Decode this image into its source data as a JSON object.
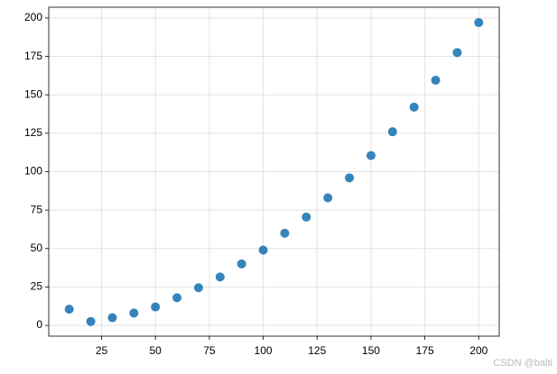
{
  "chart_data": {
    "type": "scatter",
    "x": [
      10,
      20,
      30,
      40,
      50,
      60,
      70,
      80,
      90,
      100,
      110,
      120,
      130,
      140,
      150,
      160,
      170,
      180,
      190,
      200
    ],
    "values": [
      10.5,
      2.5,
      5,
      8,
      12,
      18,
      24.5,
      31.5,
      40,
      49,
      60,
      70.5,
      83,
      96,
      110.5,
      126,
      142,
      159.5,
      177.5,
      197
    ],
    "color": "#1f77b4",
    "xlim": [
      0.5,
      209.5
    ],
    "ylim": [
      -7,
      207
    ],
    "xticks": [
      25,
      50,
      75,
      100,
      125,
      150,
      175,
      200
    ],
    "yticks": [
      0,
      25,
      50,
      75,
      100,
      125,
      150,
      175,
      200
    ],
    "grid": true,
    "watermark": "CSDN @balti"
  }
}
